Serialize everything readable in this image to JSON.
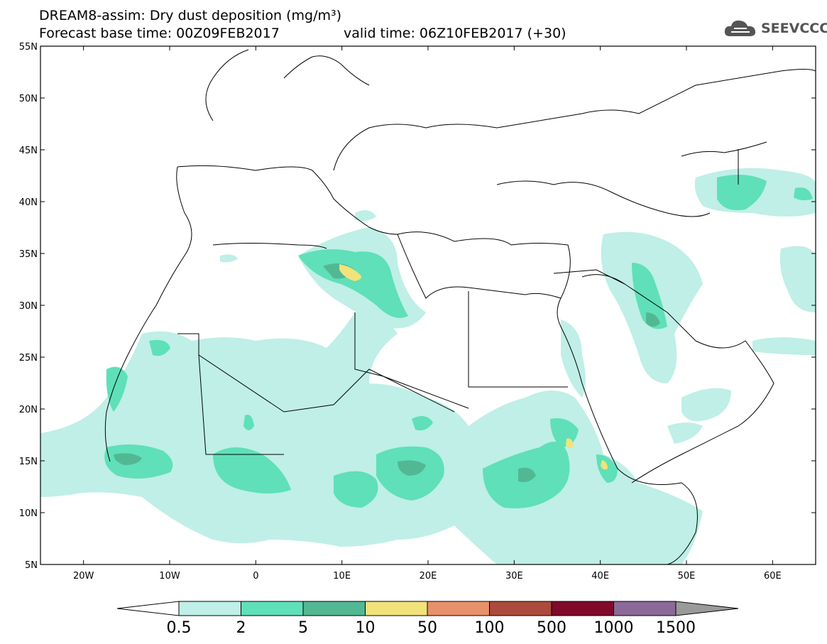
{
  "header": {
    "title_line1": "DREAM8-assim: Dry dust deposition (mg/m³)",
    "base_time": "Forecast base time: 00Z09FEB2017",
    "valid_time": "valid time: 06Z10FEB2017 (+30)"
  },
  "logo": {
    "text": "SEEVCCC",
    "icon": "cloud-icon"
  },
  "map": {
    "projection": "lat-lon",
    "lon_range": [
      -25,
      65
    ],
    "lat_range": [
      5,
      55
    ],
    "lat_ticks": [
      "5N",
      "10N",
      "15N",
      "20N",
      "25N",
      "30N",
      "35N",
      "40N",
      "45N",
      "50N",
      "55N"
    ],
    "lon_ticks": [
      "20W",
      "10W",
      "0",
      "10E",
      "20E",
      "30E",
      "40E",
      "50E",
      "60E"
    ]
  },
  "colorbar": {
    "labels": [
      "0.5",
      "2",
      "5",
      "10",
      "50",
      "100",
      "500",
      "1000",
      "1500"
    ],
    "colors": [
      "#bfefe7",
      "#5fe0b8",
      "#52b893",
      "#f2e27a",
      "#e8906a",
      "#ac4a3c",
      "#7f0a2a",
      "#8b6a9a",
      "#9a9a9a"
    ]
  }
}
